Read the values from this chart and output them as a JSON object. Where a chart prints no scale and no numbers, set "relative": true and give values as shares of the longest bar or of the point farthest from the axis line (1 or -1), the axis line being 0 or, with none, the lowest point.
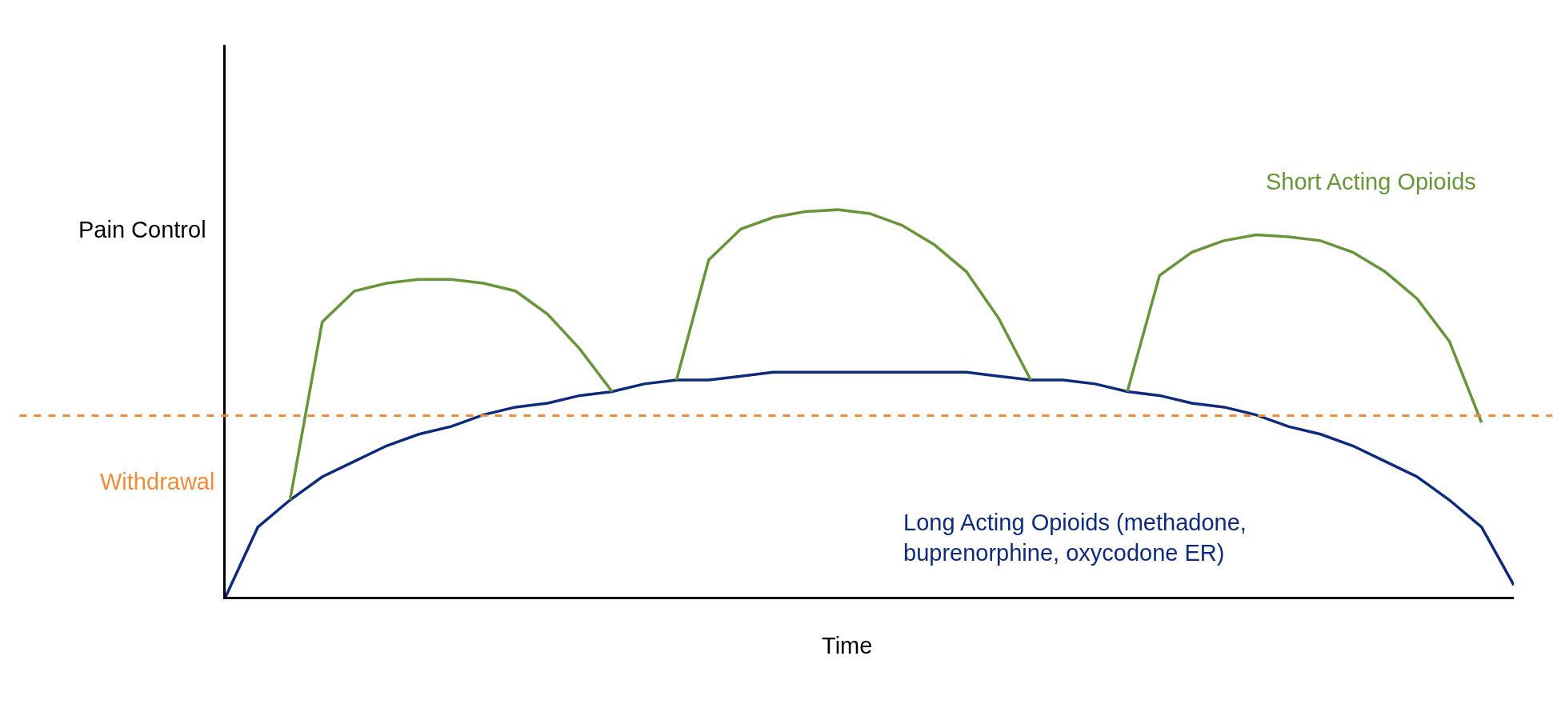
{
  "chart_data": {
    "type": "line",
    "relative": true,
    "ylabel": "Pain Control",
    "xlabel": "Time",
    "legend": false,
    "marker": "none",
    "line_style": "solid",
    "categories": [
      null,
      null,
      null,
      null,
      null,
      null,
      null,
      null,
      null,
      null,
      null,
      null,
      null,
      null,
      null,
      null,
      null,
      null,
      null,
      null,
      null,
      null,
      null,
      null,
      null,
      null,
      null,
      null,
      null,
      null,
      null,
      null,
      null,
      null,
      null,
      null,
      null,
      null,
      null,
      null,
      null
    ],
    "series": [
      {
        "name": "Long Acting Opioids (methadone, buprenorphine, oxycodone ER)",
        "color": "#0d2b7a",
        "values": [
          0,
          0.18,
          0.25,
          0.31,
          0.35,
          0.39,
          0.42,
          0.44,
          0.47,
          0.49,
          0.5,
          0.52,
          0.53,
          0.55,
          0.56,
          0.56,
          0.57,
          0.58,
          0.58,
          0.58,
          0.58,
          0.58,
          0.58,
          0.58,
          0.57,
          0.56,
          0.56,
          0.55,
          0.53,
          0.52,
          0.5,
          0.49,
          0.47,
          0.44,
          0.42,
          0.39,
          0.35,
          0.31,
          0.25,
          0.18,
          0.03
        ]
      },
      {
        "name": "Short Acting Opioids",
        "color": "#67953a",
        "values": [
          null,
          null,
          0.25,
          0.71,
          0.79,
          0.81,
          0.82,
          0.82,
          0.81,
          0.79,
          0.73,
          0.64,
          0.53,
          null,
          0.56,
          0.87,
          0.95,
          0.98,
          0.995,
          1.0,
          0.99,
          0.96,
          0.91,
          0.84,
          0.72,
          0.56,
          null,
          null,
          0.53,
          0.83,
          0.89,
          0.92,
          0.935,
          0.93,
          0.92,
          0.89,
          0.84,
          0.77,
          0.66,
          0.45,
          null
        ]
      }
    ],
    "ref_lines": [
      {
        "axis": "y",
        "value": 0.468,
        "label": "Withdrawal",
        "color": "#f08a3c",
        "line_style": "dashed"
      }
    ]
  }
}
